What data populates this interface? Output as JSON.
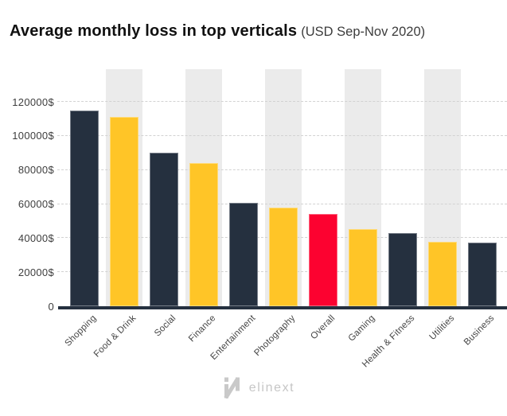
{
  "header": {
    "title": "Average monthly loss in top verticals",
    "subtitle": "(USD Sep-Nov 2020)"
  },
  "footer": {
    "brand": "elinext",
    "icon": "elinext-n-icon"
  },
  "colors": {
    "dark_bar": "#25303F",
    "yellow_bar": "#FFC527",
    "red_bar": "#FC0230",
    "band": "#EBEBEB",
    "gridline": "#D2D2D2",
    "axis_line": "#25303F",
    "title_text": "#101010",
    "subtitle_text": "#3C3C3C",
    "tick_text": "#454545",
    "logo": "#C9C9C9"
  },
  "chart_data": {
    "type": "bar",
    "title": "Average monthly loss in top verticals",
    "subtitle": "(USD Sep-Nov 2020)",
    "unit": "USD per month",
    "categories": [
      "Shopping",
      "Food & Drink",
      "Social",
      "Finance",
      "Entertainment",
      "Photography",
      "Overall",
      "Gaming",
      "Health & Fitness",
      "Utilities",
      "Business"
    ],
    "values": [
      115000,
      111000,
      90000,
      84000,
      60500,
      58000,
      54000,
      45500,
      43000,
      38000,
      37500
    ],
    "bar_colors": [
      "dark",
      "yellow",
      "dark",
      "yellow",
      "dark",
      "yellow",
      "red",
      "yellow",
      "dark",
      "yellow",
      "dark"
    ],
    "highlighted_category": "Overall",
    "xlabel": "",
    "ylabel": "",
    "y_ticks": [
      0,
      20000,
      40000,
      60000,
      80000,
      100000,
      120000
    ],
    "y_tick_labels": [
      "0",
      "20000$",
      "40000$",
      "60000$",
      "80000$",
      "100000$",
      "120000$"
    ],
    "ylim": [
      0,
      139000
    ],
    "grid": "horizontal-dashed",
    "legend": "none",
    "background_bands_on": [
      "Food & Drink",
      "Finance",
      "Photography",
      "Gaming",
      "Utilities"
    ],
    "x_label_rotation_deg": -45
  }
}
